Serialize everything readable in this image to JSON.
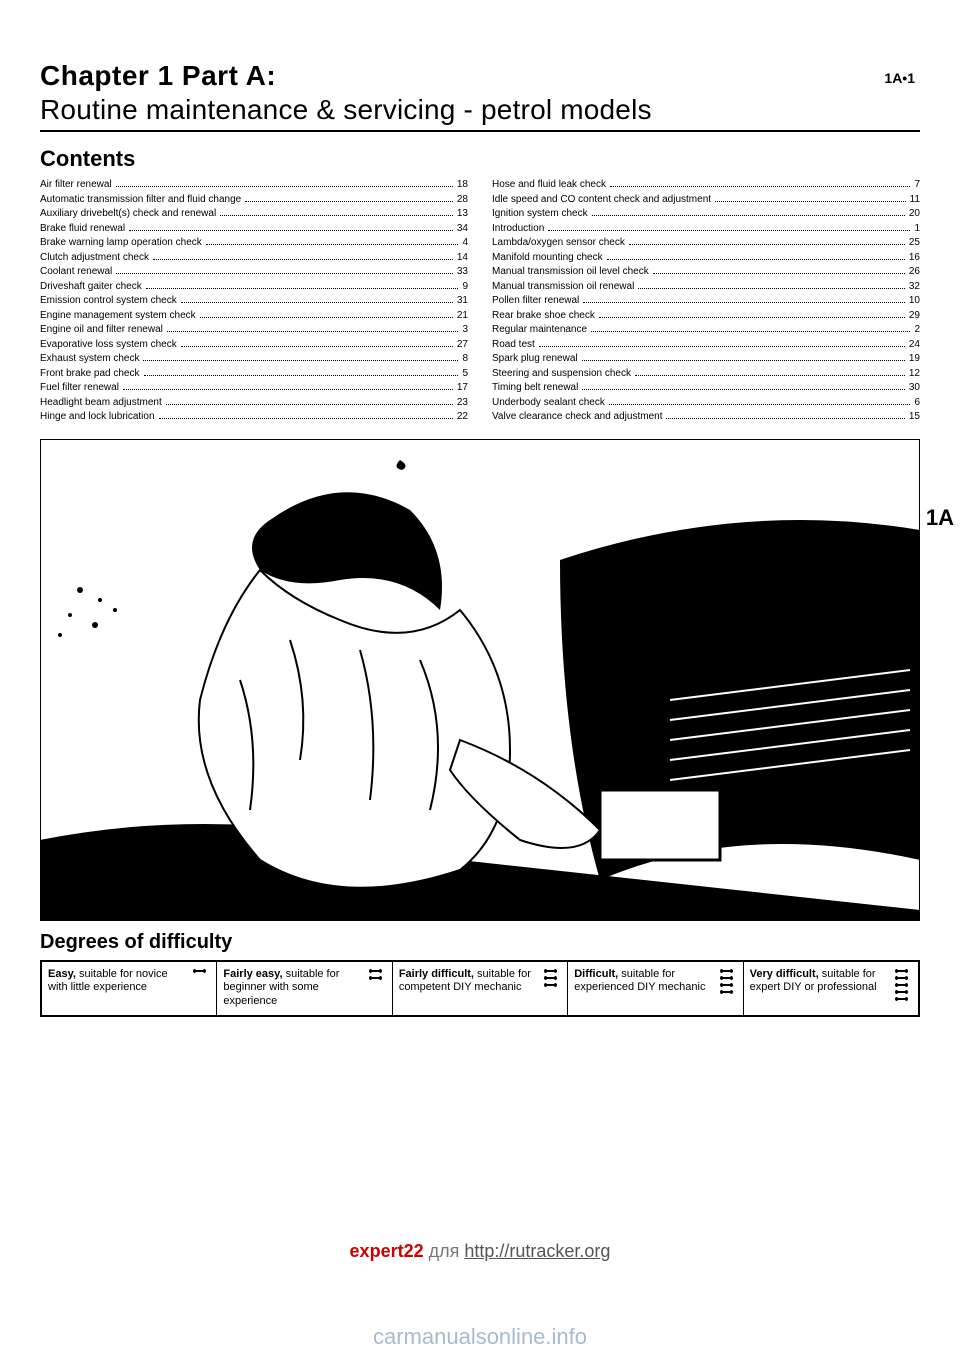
{
  "pageNumber": "1A•1",
  "chapterPart": "Chapter 1  Part A:",
  "chapterTitle": "Routine maintenance & servicing - petrol models",
  "contentsHeading": "Contents",
  "sideLabel": "1A",
  "tocLeft": [
    {
      "label": "Air filter renewal",
      "page": "18"
    },
    {
      "label": "Automatic transmission filter and fluid change",
      "page": "28"
    },
    {
      "label": "Auxiliary drivebelt(s) check and renewal",
      "page": "13"
    },
    {
      "label": "Brake fluid renewal",
      "page": "34"
    },
    {
      "label": "Brake warning lamp operation check",
      "page": "4"
    },
    {
      "label": "Clutch adjustment check",
      "page": "14"
    },
    {
      "label": "Coolant renewal",
      "page": "33"
    },
    {
      "label": "Driveshaft gaiter check",
      "page": "9"
    },
    {
      "label": "Emission control system check",
      "page": "31"
    },
    {
      "label": "Engine management system check",
      "page": "21"
    },
    {
      "label": "Engine oil and filter renewal",
      "page": "3"
    },
    {
      "label": "Evaporative loss system check",
      "page": "27"
    },
    {
      "label": "Exhaust system check",
      "page": "8"
    },
    {
      "label": "Front brake pad check",
      "page": "5"
    },
    {
      "label": "Fuel filter renewal",
      "page": "17"
    },
    {
      "label": "Headlight beam adjustment",
      "page": "23"
    },
    {
      "label": "Hinge and lock lubrication",
      "page": "22"
    }
  ],
  "tocRight": [
    {
      "label": "Hose and fluid leak check",
      "page": "7"
    },
    {
      "label": "Idle speed and CO content check and adjustment",
      "page": "11"
    },
    {
      "label": "Ignition system check",
      "page": "20"
    },
    {
      "label": "Introduction",
      "page": "1"
    },
    {
      "label": "Lambda/oxygen sensor check",
      "page": "25"
    },
    {
      "label": "Manifold mounting check",
      "page": "16"
    },
    {
      "label": "Manual transmission oil level check",
      "page": "26"
    },
    {
      "label": "Manual transmission oil renewal",
      "page": "32"
    },
    {
      "label": "Pollen filter renewal",
      "page": "10"
    },
    {
      "label": "Rear brake shoe check",
      "page": "29"
    },
    {
      "label": "Regular maintenance",
      "page": "2"
    },
    {
      "label": "Road test",
      "page": "24"
    },
    {
      "label": "Spark plug renewal",
      "page": "19"
    },
    {
      "label": "Steering and suspension check",
      "page": "12"
    },
    {
      "label": "Timing belt renewal",
      "page": "30"
    },
    {
      "label": "Underbody sealant check",
      "page": "6"
    },
    {
      "label": "Valve clearance check and adjustment",
      "page": "15"
    }
  ],
  "difficultyHeading": "Degrees of difficulty",
  "difficulty": [
    {
      "bold": "Easy,",
      "rest": " suitable for novice with little experience",
      "wrenches": 1
    },
    {
      "bold": "Fairly easy,",
      "rest": " suitable for beginner with some experience",
      "wrenches": 2
    },
    {
      "bold": "Fairly difficult,",
      "rest": " suitable for competent DIY mechanic",
      "wrenches": 3
    },
    {
      "bold": "Difficult,",
      "rest": " suitable for experienced DIY mechanic",
      "wrenches": 4
    },
    {
      "bold": "Very difficult,",
      "rest": " suitable for expert DIY or professional",
      "wrenches": 5
    }
  ],
  "footer": {
    "brand": "expert22",
    "mid": " для ",
    "url": "http://rutracker.org"
  },
  "watermark": "carmanualsonline.info"
}
